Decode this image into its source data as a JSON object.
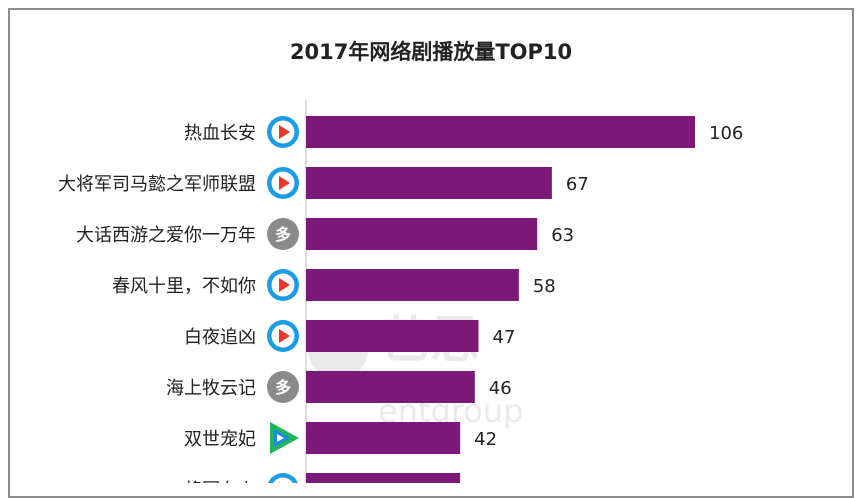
{
  "chart_data": {
    "type": "bar",
    "orientation": "horizontal",
    "title": "2017年网络剧播放量TOP10",
    "categories": [
      "热血长安",
      "大将军司马懿之军师联盟",
      "大话西游之爱你一万年",
      "春风十里，不如你",
      "白夜追凶",
      "海上牧云记",
      "双世宠妃",
      "将军在上"
    ],
    "values": [
      106,
      67,
      63,
      58,
      47,
      46,
      42,
      42
    ],
    "platform_icons": [
      "youku-icon",
      "youku-icon",
      "multi-platform-icon",
      "youku-icon",
      "youku-icon",
      "multi-platform-icon",
      "tencent-video-icon",
      "youku-icon"
    ],
    "platform_icon_text": {
      "multi": "多"
    },
    "bar_color": "#7b1878",
    "xlabel": "",
    "ylabel": "",
    "xlim": [
      0,
      106
    ],
    "grid": false,
    "legend": "none"
  },
  "watermark": {
    "brand": "艺恩",
    "sub": "entgroup"
  },
  "colors": {
    "youku_blue": "#1a9de6",
    "youku_red": "#e8362a",
    "multi_gray": "#8a8a8a",
    "tencent_green": "#20b35a",
    "tencent_blue": "#1a8be0"
  }
}
